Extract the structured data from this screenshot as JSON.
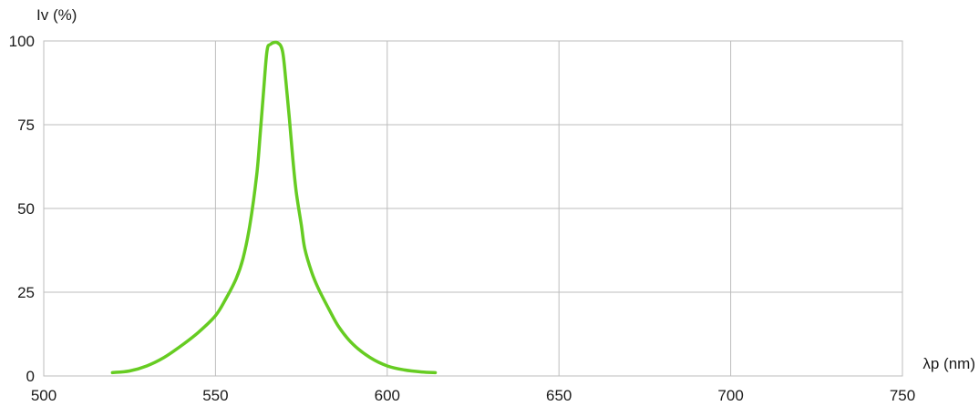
{
  "chart_data": {
    "type": "line",
    "ylabel": "Iv (%)",
    "xlabel": "λp (nm)",
    "xlim": [
      500,
      750
    ],
    "ylim": [
      0,
      100
    ],
    "x_ticks": [
      500,
      550,
      600,
      650,
      700,
      750
    ],
    "y_ticks": [
      0,
      25,
      50,
      75,
      100
    ],
    "grid": true,
    "series": [
      {
        "color": "#66cc22",
        "x": [
          520,
          525,
          530,
          535,
          540,
          545,
          550,
          553,
          556,
          558,
          560,
          562,
          563,
          564,
          565,
          566,
          568,
          569.5,
          570.5,
          571.5,
          572.5,
          573.5,
          575,
          576,
          578,
          580,
          583,
          586,
          590,
          595,
          600,
          605,
          610,
          614
        ],
        "y": [
          1,
          1.5,
          3,
          5.5,
          9,
          13,
          18,
          23,
          29,
          35,
          45,
          60,
          72,
          85,
          97,
          99,
          99.5,
          97,
          88,
          77,
          65,
          55,
          45,
          38,
          31,
          26,
          20,
          14.5,
          9.5,
          5.5,
          3,
          1.8,
          1.2,
          1
        ]
      }
    ]
  }
}
